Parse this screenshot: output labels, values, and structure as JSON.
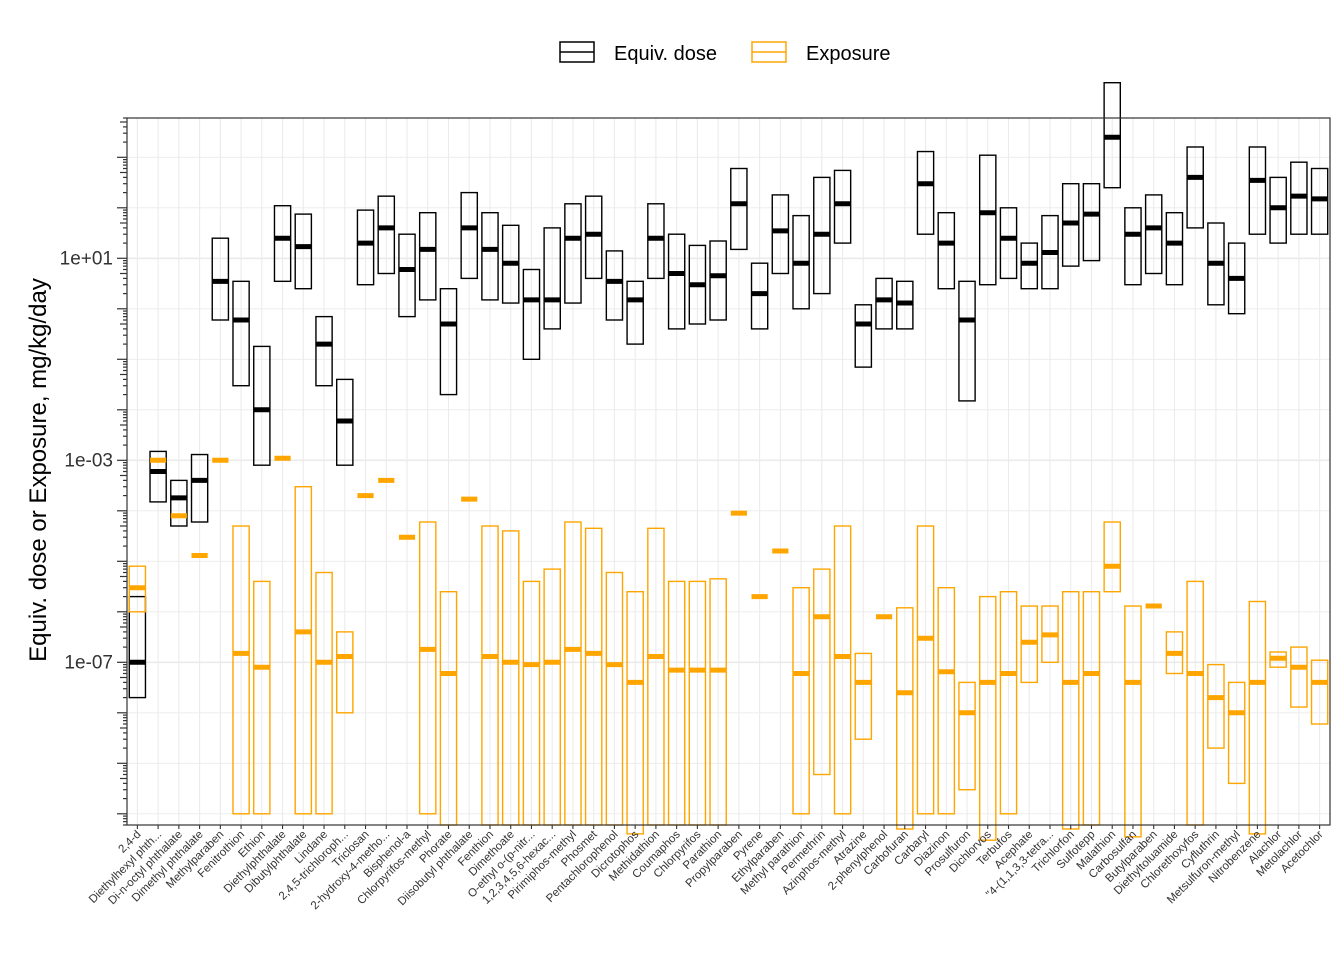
{
  "chart_data": {
    "type": "box",
    "ylabel": "Equiv. dose or Exposure, mg/kg/day",
    "xlabel": "",
    "y_scale": "log10",
    "ylim": [
      6e-11,
      6000.0
    ],
    "y_ticks": [
      {
        "value": 1e-07,
        "label": "1e-07"
      },
      {
        "value": 0.001,
        "label": "1e-03"
      },
      {
        "value": 10,
        "label": "1e+01"
      }
    ],
    "grid": true,
    "legend": {
      "position": "top",
      "entries": [
        "Equiv. dose",
        "Exposure"
      ]
    },
    "colors": {
      "Equiv. dose": "#000000",
      "Exposure": "#FFA500"
    },
    "categories": [
      "2,4-d",
      "Diethylhexyl phth...",
      "Di-n-octyl phthalate",
      "Dimethyl phthalate",
      "Methylparaben",
      "Fenitrothion",
      "Ethion",
      "Diethylphthalate",
      "Dibutylphthalate",
      "Lindane",
      "2,4,5-trichloroph...",
      "Triclosan",
      "2-hydroxy-4-metho...",
      "Bisphenol-a",
      "Chlorpyrifos-methyl",
      "Phorate",
      "Diisobutyl phthalate",
      "Fenthion",
      "Dimethoate",
      "O-ethyl o-(p-nitr...",
      "1,2,3,4,5,6-hexac...",
      "Pirimiphos-methyl",
      "Phosmet",
      "Pentachlorophenol",
      "Dicrotophos",
      "Methidathion",
      "Coumaphos",
      "Chlorpyrifos",
      "Parathion",
      "Propylparaben",
      "Pyrene",
      "Ethylparaben",
      "Methyl parathion",
      "Permethrin",
      "Azinphos-methyl",
      "Atrazine",
      "2-phenylphenol",
      "Carbofuran",
      "Carbaryl",
      "Diazinon",
      "Prosulfuron",
      "Dichlorvos",
      "Terbufos",
      "Acephate",
      "\"4-(1,1,3,3-tetra...",
      "Trichlorfon",
      "Sulfotepp",
      "Malathion",
      "Carbosulfan",
      "Butylparaben",
      "Diethyltoluamide",
      "Chlorethoxyfos",
      "Cyfluthrin",
      "Metsulfuron-methyl",
      "Nitrobenzene",
      "Alachlor",
      "Metolachlor",
      "Acetochlor"
    ],
    "series": [
      {
        "name": "Equiv. dose",
        "boxes": [
          [
            2e-08,
            1e-07,
            2e-06
          ],
          [
            0.00015,
            0.0006,
            0.0015
          ],
          [
            5e-05,
            0.00018,
            0.0004
          ],
          [
            6e-05,
            0.0004,
            0.0013
          ],
          [
            0.6,
            3.5,
            25
          ],
          [
            0.03,
            0.6,
            3.5
          ],
          [
            0.0008,
            0.01,
            0.18
          ],
          [
            3.5,
            25,
            110
          ],
          [
            2.5,
            17,
            75
          ],
          [
            0.03,
            0.2,
            0.7
          ],
          [
            0.0008,
            0.006,
            0.04
          ],
          [
            3,
            20,
            90
          ],
          [
            5,
            40,
            170
          ],
          [
            0.7,
            6,
            30
          ],
          [
            1.5,
            15,
            80
          ],
          [
            0.02,
            0.5,
            2.5
          ],
          [
            4,
            40,
            200
          ],
          [
            1.5,
            15,
            80
          ],
          [
            1.3,
            8,
            45
          ],
          [
            0.1,
            1.5,
            6
          ],
          [
            0.4,
            1.5,
            40
          ],
          [
            1.3,
            25,
            120
          ],
          [
            4,
            30,
            170
          ],
          [
            0.6,
            3.5,
            14
          ],
          [
            0.2,
            1.5,
            3.5
          ],
          [
            4,
            25,
            120
          ],
          [
            0.4,
            5,
            30
          ],
          [
            0.5,
            3,
            18
          ],
          [
            0.6,
            4.5,
            22
          ],
          [
            15,
            120,
            600
          ],
          [
            0.4,
            2,
            8
          ],
          [
            5,
            35,
            180
          ],
          [
            1,
            8,
            70
          ],
          [
            2,
            30,
            400
          ],
          [
            20,
            120,
            550
          ],
          [
            0.07,
            0.5,
            1.2
          ],
          [
            0.4,
            1.5,
            4
          ],
          [
            0.4,
            1.3,
            3.5
          ],
          [
            30,
            300,
            1300
          ],
          [
            2.5,
            20,
            80
          ],
          [
            0.015,
            0.6,
            3.5
          ],
          [
            3,
            80,
            1100
          ],
          [
            4,
            25,
            100
          ],
          [
            2.5,
            8,
            20
          ],
          [
            2.5,
            13,
            70
          ],
          [
            7,
            50,
            300
          ],
          [
            9,
            75,
            300
          ],
          [
            250,
            2500,
            30000
          ],
          [
            3,
            30,
            100
          ],
          [
            5,
            40,
            180
          ],
          [
            3,
            20,
            80
          ],
          [
            40,
            400,
            1600
          ],
          [
            1.2,
            8,
            50
          ],
          [
            0.8,
            4,
            20
          ],
          [
            30,
            350,
            1600
          ],
          [
            20,
            100,
            400
          ],
          [
            30,
            170,
            800
          ],
          [
            30,
            150,
            600
          ]
        ]
      },
      {
        "name": "Exposure",
        "boxes": [
          [
            1e-06,
            3e-06,
            8e-06
          ],
          [
            0.001,
            0.001,
            0.001
          ],
          [
            8e-05,
            8e-05,
            8e-05
          ],
          [
            1.3e-05,
            1.3e-05,
            1.3e-05
          ],
          [
            0.001,
            0.001,
            0.001
          ],
          [
            1e-10,
            1.5e-07,
            5e-05
          ],
          [
            1e-10,
            8e-08,
            4e-06
          ],
          [
            0.0011,
            0.0011,
            0.0011
          ],
          [
            1e-10,
            4e-07,
            0.0003
          ],
          [
            1e-10,
            1e-07,
            6e-06
          ],
          [
            1e-08,
            1.3e-07,
            4e-07
          ],
          [
            0.0002,
            0.0002,
            0.0002
          ],
          [
            0.0004,
            0.0004,
            0.0004
          ],
          [
            3e-05,
            3e-05,
            3e-05
          ],
          [
            1e-10,
            1.8e-07,
            6e-05
          ],
          [
            6e-11,
            6e-08,
            2.5e-06
          ],
          [
            0.00017,
            0.00017,
            0.00017
          ],
          [
            6e-11,
            1.3e-07,
            5e-05
          ],
          [
            6e-11,
            1e-07,
            4e-05
          ],
          [
            6e-11,
            9e-08,
            4e-06
          ],
          [
            6e-11,
            1e-07,
            7e-06
          ],
          [
            6e-11,
            1.8e-07,
            6e-05
          ],
          [
            6e-11,
            1.5e-07,
            4.5e-05
          ],
          [
            6e-11,
            9e-08,
            6e-06
          ],
          [
            4e-11,
            4e-08,
            2.5e-06
          ],
          [
            6e-11,
            1.3e-07,
            4.5e-05
          ],
          [
            6e-11,
            7e-08,
            4e-06
          ],
          [
            6e-11,
            7e-08,
            4e-06
          ],
          [
            6e-11,
            7e-08,
            4.5e-06
          ],
          [
            9e-05,
            9e-05,
            9e-05
          ],
          [
            2e-06,
            2e-06,
            2e-06
          ],
          [
            1.6e-05,
            1.6e-05,
            1.6e-05
          ],
          [
            1e-10,
            6e-08,
            3e-06
          ],
          [
            6e-10,
            8e-07,
            7e-06
          ],
          [
            1e-10,
            1.3e-07,
            5e-05
          ],
          [
            3e-09,
            4e-08,
            1.5e-07
          ],
          [
            8e-07,
            8e-07,
            8e-07
          ],
          [
            5e-11,
            2.5e-08,
            1.2e-06
          ],
          [
            1e-10,
            3e-07,
            5e-05
          ],
          [
            1e-10,
            6.5e-08,
            3e-06
          ],
          [
            3e-10,
            1e-08,
            4e-08
          ],
          [
            3e-11,
            4e-08,
            2e-06
          ],
          [
            1e-10,
            6e-08,
            2.5e-06
          ],
          [
            4e-08,
            2.5e-07,
            1.3e-06
          ],
          [
            1e-07,
            3.5e-07,
            1.3e-06
          ],
          [
            5e-11,
            4e-08,
            2.5e-06
          ],
          [
            6e-11,
            6e-08,
            2.5e-06
          ],
          [
            2.5e-06,
            8e-06,
            6e-05
          ],
          [
            3.5e-11,
            4e-08,
            1.3e-06
          ],
          [
            1.3e-06,
            1.3e-06,
            1.3e-06
          ],
          [
            6e-08,
            1.5e-07,
            4e-07
          ],
          [
            6e-11,
            6e-08,
            4e-06
          ],
          [
            2e-09,
            2e-08,
            9e-08
          ],
          [
            4e-10,
            1e-08,
            4e-08
          ],
          [
            4e-11,
            4e-08,
            1.6e-06
          ],
          [
            8e-08,
            1.2e-07,
            1.6e-07
          ],
          [
            1.3e-08,
            8e-08,
            2e-07
          ],
          [
            6e-09,
            4e-08,
            1.1e-07
          ]
        ]
      }
    ]
  }
}
